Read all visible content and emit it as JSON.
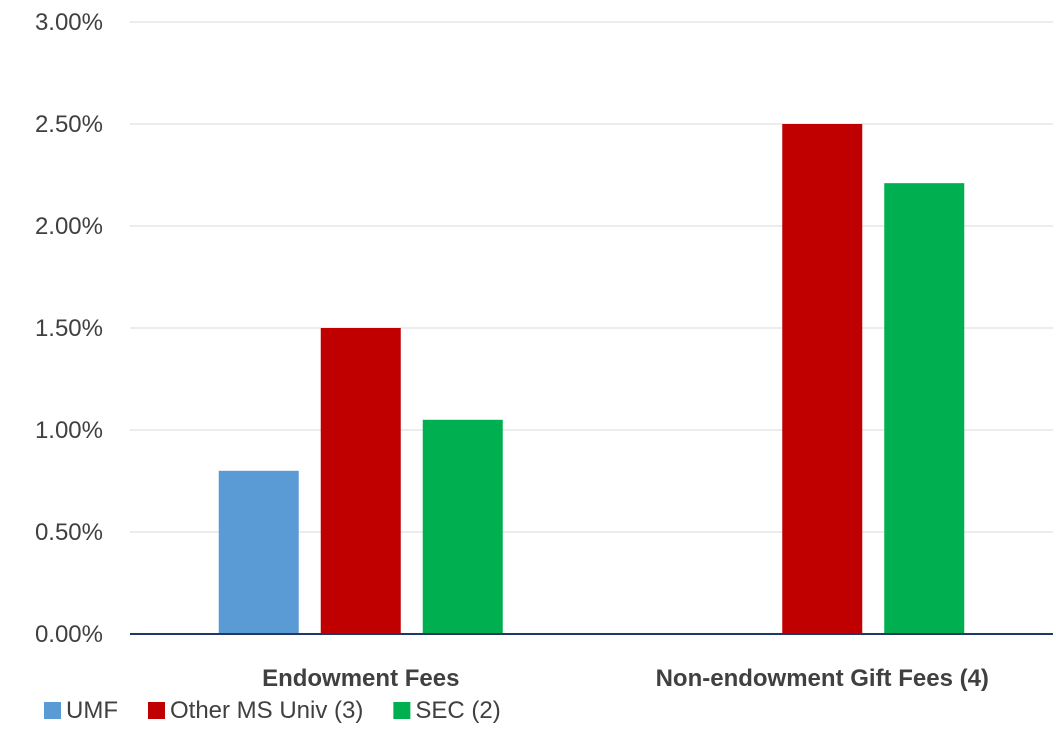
{
  "chart_data": {
    "type": "bar",
    "categories": [
      "Endowment Fees",
      "Non-endowment Gift Fees (4)"
    ],
    "series": [
      {
        "name": "UMF",
        "color": "#5B9BD5",
        "values": [
          0.8,
          null
        ]
      },
      {
        "name": "Other MS Univ (3)",
        "color": "#C00000",
        "values": [
          1.5,
          2.5
        ]
      },
      {
        "name": "SEC (2)",
        "color": "#00B050",
        "values": [
          1.05,
          2.21
        ]
      }
    ],
    "ylim": [
      0,
      3.0
    ],
    "yticks": [
      0,
      0.5,
      1.0,
      1.5,
      2.0,
      2.5,
      3.0
    ],
    "ytick_labels": [
      "0.00%",
      "0.50%",
      "1.00%",
      "1.50%",
      "2.00%",
      "2.50%",
      "3.00%"
    ],
    "grid": true,
    "legend": "bottom-left",
    "axis_color": "#1F3864",
    "grid_color": "#D9D9D9"
  }
}
